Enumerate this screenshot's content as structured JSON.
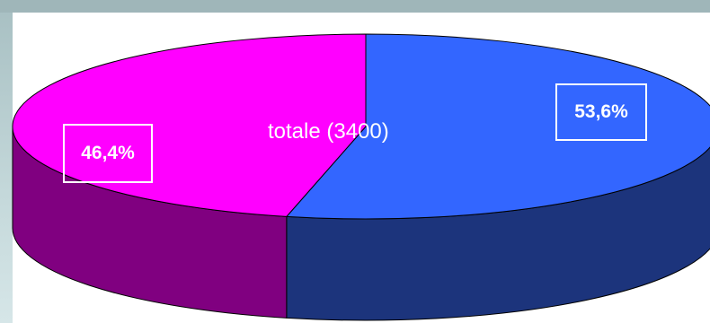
{
  "chart_data": {
    "type": "pie",
    "title": "totale (3400)",
    "slices": [
      {
        "name": "",
        "value": 53.6,
        "label": "53,6%",
        "color": "#3366ff",
        "side_color": "#1c347c"
      },
      {
        "name": "",
        "value": 46.4,
        "label": "46,4%",
        "color": "#ff00ff",
        "side_color": "#800080"
      }
    ],
    "style": "3d-tilted"
  }
}
